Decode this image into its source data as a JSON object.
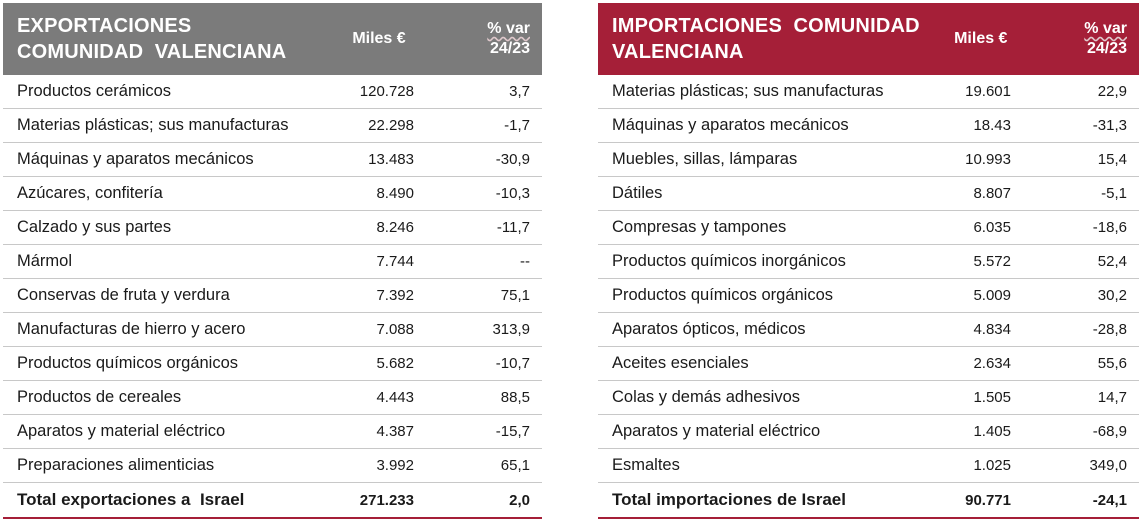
{
  "exports": {
    "title_line1": "EXPORTACIONES",
    "title_line2": "COMUNIDAD  VALENCIANA",
    "col_value": "Miles €",
    "col_var_line1": "% var",
    "col_var_line2": "24/23",
    "header_color": "#7b7b7b",
    "rows": [
      {
        "name": "Productos cerámicos",
        "value": "120.728",
        "var": "3,7"
      },
      {
        "name": "Materias plásticas; sus manufacturas",
        "value": "22.298",
        "var": "-1,7"
      },
      {
        "name": "Máquinas y aparatos mecánicos",
        "value": "13.483",
        "var": "-30,9"
      },
      {
        "name": "Azúcares, confitería",
        "value": "8.490",
        "var": "-10,3"
      },
      {
        "name": "Calzado y sus partes",
        "value": "8.246",
        "var": "-11,7"
      },
      {
        "name": "Mármol",
        "value": "7.744",
        "var": "--"
      },
      {
        "name": "Conservas de fruta y verdura",
        "value": "7.392",
        "var": "75,1"
      },
      {
        "name": "Manufacturas de hierro y acero",
        "value": "7.088",
        "var": "313,9"
      },
      {
        "name": "Productos químicos orgánicos",
        "value": "5.682",
        "var": "-10,7"
      },
      {
        "name": "Productos de cereales",
        "value": "4.443",
        "var": "88,5"
      },
      {
        "name": "Aparatos y material eléctrico",
        "value": "4.387",
        "var": "-15,7"
      },
      {
        "name": "Preparaciones alimenticias",
        "value": "3.992",
        "var": "65,1"
      }
    ],
    "total": {
      "name": "Total exportaciones a  Israel",
      "value": "271.233",
      "var": "2,0"
    }
  },
  "imports": {
    "title_line1": "IMPORTACIONES  COMUNIDAD",
    "title_line2": "VALENCIANA",
    "col_value": "Miles €",
    "col_var_line1": "% var",
    "col_var_line2": "24/23",
    "header_color": "#a51f38",
    "rows": [
      {
        "name": "Materias plásticas; sus manufacturas",
        "value": "19.601",
        "var": "22,9"
      },
      {
        "name": "Máquinas y aparatos mecánicos",
        "value": "18.43",
        "var": "-31,3"
      },
      {
        "name": "Muebles, sillas, lámparas",
        "value": "10.993",
        "var": "15,4"
      },
      {
        "name": "Dátiles",
        "value": "8.807",
        "var": "-5,1"
      },
      {
        "name": "Compresas y tampones",
        "value": "6.035",
        "var": "-18,6"
      },
      {
        "name": "Productos químicos inorgánicos",
        "value": "5.572",
        "var": "52,4"
      },
      {
        "name": "Productos químicos orgánicos",
        "value": "5.009",
        "var": "30,2"
      },
      {
        "name": "Aparatos ópticos, médicos",
        "value": "4.834",
        "var": "-28,8"
      },
      {
        "name": "Aceites esenciales",
        "value": "2.634",
        "var": "55,6"
      },
      {
        "name": "Colas y demás adhesivos",
        "value": "1.505",
        "var": "14,7"
      },
      {
        "name": "Aparatos y material eléctrico",
        "value": "1.405",
        "var": "-68,9"
      },
      {
        "name": "Esmaltes",
        "value": "1.025",
        "var": "349,0"
      }
    ],
    "total": {
      "name": "Total importaciones de Israel",
      "value": "90.771",
      "var": "-24,1"
    }
  }
}
